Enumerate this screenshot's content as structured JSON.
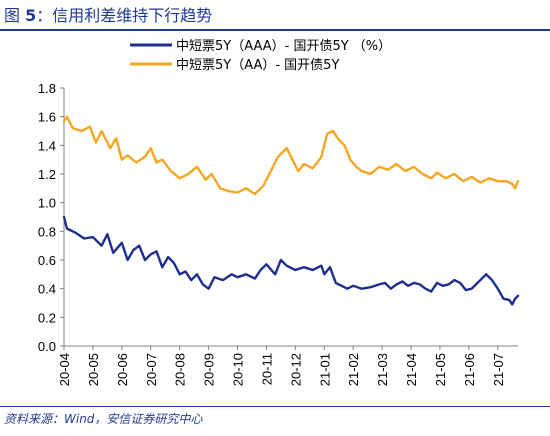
{
  "figure": {
    "title_prefix": "图 ",
    "title_number": "5",
    "title_text": "：信用利差维持下行趋势",
    "source": "资料来源：Wind，安信证券研究中心"
  },
  "colors": {
    "series_aaa": "#1f2f8f",
    "series_aa": "#f6a623",
    "header_blue": "#1f3a93",
    "axis": "#808080"
  },
  "chart_data": {
    "type": "line",
    "title": "",
    "xlabel": "",
    "ylabel": "",
    "ylim": [
      0,
      1.8
    ],
    "yticks": [
      "0.0",
      "0.2",
      "0.4",
      "0.6",
      "0.8",
      "1.0",
      "1.2",
      "1.4",
      "1.6",
      "1.8"
    ],
    "xlim": [
      0,
      15.7
    ],
    "xticks": [
      "20-04",
      "20-05",
      "20-06",
      "20-07",
      "20-08",
      "20-09",
      "20-10",
      "20-11",
      "20-12",
      "21-01",
      "21-02",
      "21-03",
      "21-04",
      "21-05",
      "21-06",
      "21-07"
    ],
    "x_unit": "months since 2020-04",
    "legend_position": "top",
    "grid": false,
    "series": [
      {
        "name": "中短票5Y（AAA）- 国开债5Y （%）",
        "color": "#1f2f8f",
        "points": [
          [
            0,
            0.9
          ],
          [
            0.1,
            0.82
          ],
          [
            0.4,
            0.79
          ],
          [
            0.7,
            0.75
          ],
          [
            1.0,
            0.76
          ],
          [
            1.3,
            0.7
          ],
          [
            1.5,
            0.78
          ],
          [
            1.7,
            0.65
          ],
          [
            2.0,
            0.72
          ],
          [
            2.2,
            0.6
          ],
          [
            2.4,
            0.67
          ],
          [
            2.6,
            0.7
          ],
          [
            2.8,
            0.6
          ],
          [
            3.0,
            0.64
          ],
          [
            3.2,
            0.66
          ],
          [
            3.4,
            0.55
          ],
          [
            3.6,
            0.62
          ],
          [
            3.8,
            0.58
          ],
          [
            4.0,
            0.5
          ],
          [
            4.2,
            0.52
          ],
          [
            4.4,
            0.46
          ],
          [
            4.6,
            0.5
          ],
          [
            4.8,
            0.43
          ],
          [
            5.0,
            0.4
          ],
          [
            5.2,
            0.48
          ],
          [
            5.5,
            0.46
          ],
          [
            5.8,
            0.5
          ],
          [
            6.0,
            0.48
          ],
          [
            6.3,
            0.5
          ],
          [
            6.6,
            0.47
          ],
          [
            6.8,
            0.53
          ],
          [
            7.0,
            0.57
          ],
          [
            7.3,
            0.5
          ],
          [
            7.5,
            0.6
          ],
          [
            7.7,
            0.56
          ],
          [
            8.0,
            0.53
          ],
          [
            8.3,
            0.55
          ],
          [
            8.6,
            0.53
          ],
          [
            8.9,
            0.56
          ],
          [
            9.0,
            0.5
          ],
          [
            9.2,
            0.55
          ],
          [
            9.4,
            0.44
          ],
          [
            9.6,
            0.42
          ],
          [
            9.8,
            0.4
          ],
          [
            10.0,
            0.42
          ],
          [
            10.3,
            0.4
          ],
          [
            10.6,
            0.41
          ],
          [
            10.9,
            0.43
          ],
          [
            11.1,
            0.44
          ],
          [
            11.3,
            0.4
          ],
          [
            11.5,
            0.43
          ],
          [
            11.7,
            0.45
          ],
          [
            11.9,
            0.42
          ],
          [
            12.1,
            0.44
          ],
          [
            12.3,
            0.43
          ],
          [
            12.5,
            0.4
          ],
          [
            12.7,
            0.38
          ],
          [
            12.9,
            0.44
          ],
          [
            13.1,
            0.42
          ],
          [
            13.3,
            0.43
          ],
          [
            13.5,
            0.46
          ],
          [
            13.7,
            0.44
          ],
          [
            13.9,
            0.39
          ],
          [
            14.1,
            0.4
          ],
          [
            14.3,
            0.44
          ],
          [
            14.6,
            0.5
          ],
          [
            14.8,
            0.46
          ],
          [
            15.0,
            0.4
          ],
          [
            15.2,
            0.33
          ],
          [
            15.4,
            0.32
          ],
          [
            15.5,
            0.29
          ],
          [
            15.6,
            0.33
          ],
          [
            15.7,
            0.35
          ]
        ]
      },
      {
        "name": "中短票5Y（AA）- 国开债5Y",
        "color": "#f6a623",
        "points": [
          [
            0,
            1.57
          ],
          [
            0.1,
            1.6
          ],
          [
            0.3,
            1.52
          ],
          [
            0.6,
            1.5
          ],
          [
            0.9,
            1.53
          ],
          [
            1.1,
            1.42
          ],
          [
            1.3,
            1.5
          ],
          [
            1.6,
            1.38
          ],
          [
            1.8,
            1.45
          ],
          [
            2.0,
            1.3
          ],
          [
            2.2,
            1.33
          ],
          [
            2.5,
            1.28
          ],
          [
            2.8,
            1.32
          ],
          [
            3.0,
            1.38
          ],
          [
            3.2,
            1.28
          ],
          [
            3.4,
            1.3
          ],
          [
            3.7,
            1.22
          ],
          [
            4.0,
            1.17
          ],
          [
            4.3,
            1.2
          ],
          [
            4.6,
            1.25
          ],
          [
            4.9,
            1.16
          ],
          [
            5.1,
            1.2
          ],
          [
            5.4,
            1.1
          ],
          [
            5.7,
            1.08
          ],
          [
            6.0,
            1.07
          ],
          [
            6.3,
            1.1
          ],
          [
            6.6,
            1.06
          ],
          [
            6.9,
            1.12
          ],
          [
            7.1,
            1.2
          ],
          [
            7.4,
            1.32
          ],
          [
            7.7,
            1.38
          ],
          [
            7.9,
            1.3
          ],
          [
            8.1,
            1.22
          ],
          [
            8.3,
            1.27
          ],
          [
            8.6,
            1.24
          ],
          [
            8.9,
            1.32
          ],
          [
            9.1,
            1.48
          ],
          [
            9.3,
            1.5
          ],
          [
            9.5,
            1.44
          ],
          [
            9.7,
            1.4
          ],
          [
            9.9,
            1.3
          ],
          [
            10.1,
            1.25
          ],
          [
            10.3,
            1.22
          ],
          [
            10.6,
            1.2
          ],
          [
            10.9,
            1.25
          ],
          [
            11.2,
            1.23
          ],
          [
            11.5,
            1.27
          ],
          [
            11.8,
            1.22
          ],
          [
            12.1,
            1.25
          ],
          [
            12.4,
            1.2
          ],
          [
            12.7,
            1.17
          ],
          [
            12.9,
            1.21
          ],
          [
            13.2,
            1.17
          ],
          [
            13.5,
            1.2
          ],
          [
            13.8,
            1.15
          ],
          [
            14.1,
            1.18
          ],
          [
            14.4,
            1.14
          ],
          [
            14.7,
            1.17
          ],
          [
            15.0,
            1.15
          ],
          [
            15.3,
            1.15
          ],
          [
            15.5,
            1.13
          ],
          [
            15.6,
            1.1
          ],
          [
            15.7,
            1.15
          ]
        ]
      }
    ]
  }
}
